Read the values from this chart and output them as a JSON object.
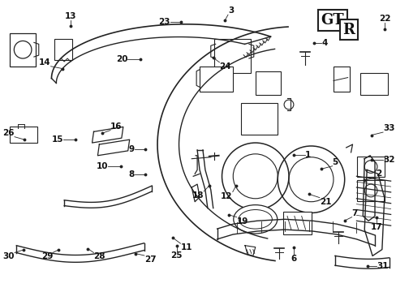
{
  "bg_color": "#ffffff",
  "line_color": "#222222",
  "text_color": "#111111",
  "font_size": 7.5,
  "label_data": [
    [
      1,
      0.748,
      0.53,
      0.778,
      0.53
    ],
    [
      2,
      0.93,
      0.62,
      0.96,
      0.61
    ],
    [
      3,
      0.572,
      0.062,
      0.58,
      0.042
    ],
    [
      4,
      0.8,
      0.14,
      0.82,
      0.14
    ],
    [
      5,
      0.82,
      0.58,
      0.848,
      0.57
    ],
    [
      6,
      0.748,
      0.855,
      0.748,
      0.878
    ],
    [
      7,
      0.88,
      0.76,
      0.898,
      0.748
    ],
    [
      8,
      0.368,
      0.6,
      0.34,
      0.6
    ],
    [
      9,
      0.368,
      0.51,
      0.34,
      0.51
    ],
    [
      10,
      0.305,
      0.57,
      0.272,
      0.57
    ],
    [
      11,
      0.438,
      0.82,
      0.458,
      0.84
    ],
    [
      12,
      0.6,
      0.64,
      0.592,
      0.66
    ],
    [
      13,
      0.175,
      0.082,
      0.175,
      0.06
    ],
    [
      14,
      0.155,
      0.23,
      0.125,
      0.222
    ],
    [
      15,
      0.188,
      0.478,
      0.158,
      0.478
    ],
    [
      16,
      0.258,
      0.455,
      0.278,
      0.445
    ],
    [
      17,
      0.962,
      0.748,
      0.962,
      0.768
    ],
    [
      18,
      0.532,
      0.638,
      0.518,
      0.658
    ],
    [
      19,
      0.582,
      0.74,
      0.602,
      0.748
    ],
    [
      20,
      0.355,
      0.198,
      0.322,
      0.198
    ],
    [
      21,
      0.788,
      0.668,
      0.815,
      0.68
    ],
    [
      22,
      0.982,
      0.092,
      0.982,
      0.07
    ],
    [
      23,
      0.46,
      0.068,
      0.432,
      0.068
    ],
    [
      24,
      0.542,
      0.192,
      0.558,
      0.208
    ],
    [
      25,
      0.448,
      0.848,
      0.448,
      0.868
    ],
    [
      26,
      0.058,
      0.478,
      0.032,
      0.468
    ],
    [
      27,
      0.342,
      0.875,
      0.365,
      0.882
    ],
    [
      28,
      0.22,
      0.858,
      0.235,
      0.872
    ],
    [
      29,
      0.145,
      0.862,
      0.13,
      0.872
    ],
    [
      30,
      0.055,
      0.862,
      0.032,
      0.872
    ],
    [
      31,
      0.938,
      0.92,
      0.962,
      0.92
    ],
    [
      32,
      0.948,
      0.548,
      0.978,
      0.548
    ],
    [
      33,
      0.948,
      0.462,
      0.978,
      0.452
    ]
  ]
}
